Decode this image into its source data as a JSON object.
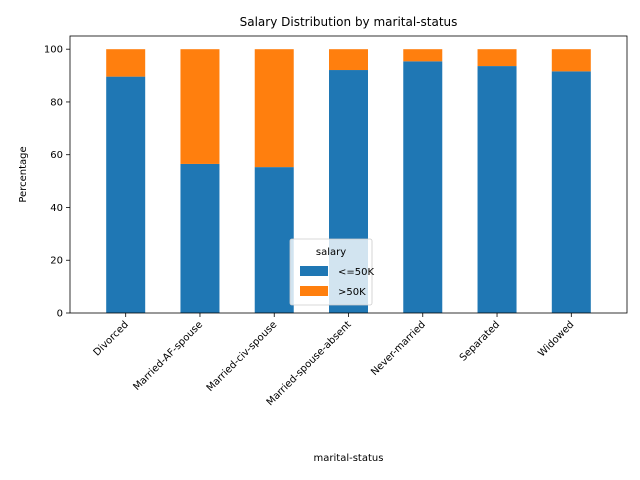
{
  "chart_data": {
    "type": "bar",
    "stacked": true,
    "title": "Salary Distribution by marital-status",
    "xlabel": "marital-status",
    "ylabel": "Percentage",
    "ylim": [
      0,
      105
    ],
    "yticks": [
      "0",
      "20",
      "40",
      "60",
      "80",
      "100"
    ],
    "categories": [
      "Divorced",
      "Married-AF-spouse",
      "Married-civ-spouse",
      "Married-spouse-absent",
      "Never-married",
      "Separated",
      "Widowed"
    ],
    "series": [
      {
        "name": "<=50K",
        "color": "#1f77b4",
        "values": [
          89.6,
          56.5,
          55.3,
          92.1,
          95.4,
          93.6,
          91.6
        ]
      },
      {
        "name": ">50K",
        "color": "#ff7f0e",
        "values": [
          10.4,
          43.5,
          44.7,
          7.9,
          4.6,
          6.4,
          8.4
        ]
      }
    ],
    "legend": {
      "title": "salary",
      "placement": "lower-center"
    },
    "grid": false
  }
}
